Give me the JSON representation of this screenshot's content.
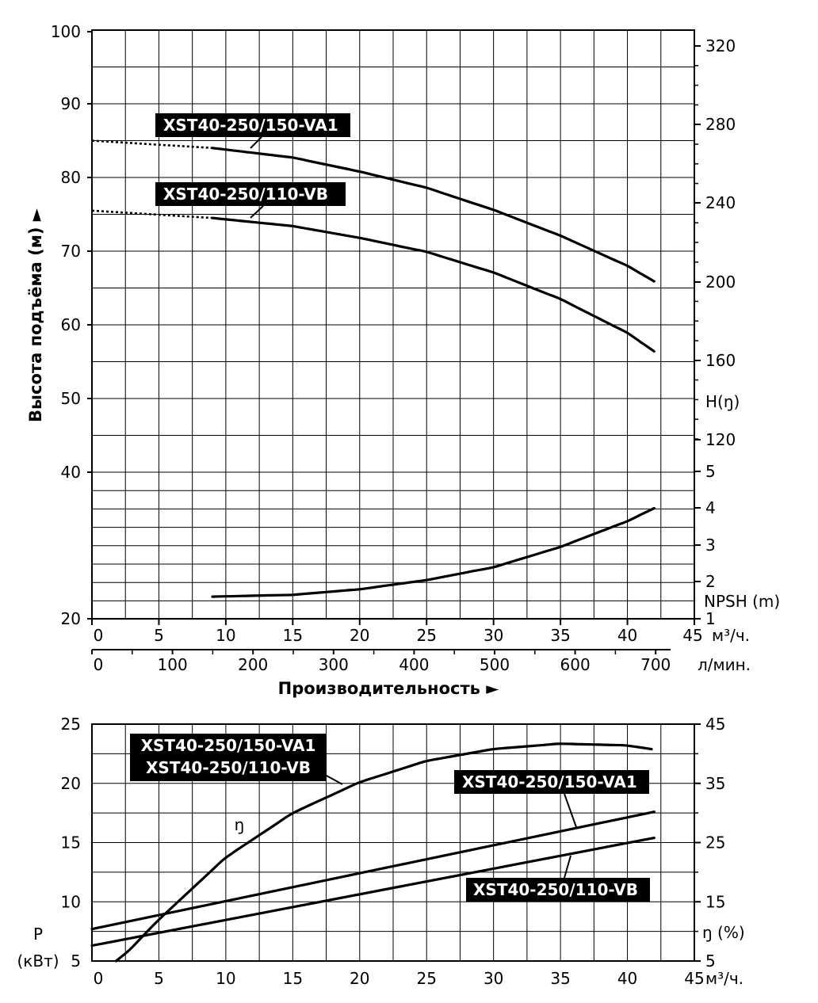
{
  "chart_data": [
    {
      "type": "line",
      "title": "",
      "xlabel": "Производительность ►",
      "ylabel": "Высота подъёма (м) ►",
      "xlim": [
        0,
        45
      ],
      "ylim": [
        20,
        100
      ],
      "x_unit": "м³/ч.",
      "x_secondary_unit": "л/мин.",
      "x_ticks": [
        "0",
        "5",
        "10",
        "15",
        "20",
        "25",
        "30",
        "35",
        "40",
        "45"
      ],
      "x_secondary_ticks": [
        "0",
        "100",
        "200",
        "300",
        "400",
        "500",
        "600",
        "700"
      ],
      "y_ticks": [
        "20",
        "40",
        "50",
        "60",
        "70",
        "80",
        "90",
        "100"
      ],
      "y_right_label": "H(ŋ)",
      "y_right_ticks": [
        "120",
        "160",
        "200",
        "240",
        "280",
        "320"
      ],
      "npsh_label": "NPSH (m)",
      "npsh_ticks": [
        "1",
        "2",
        "3",
        "4",
        "5"
      ],
      "grid": true,
      "series": [
        {
          "name": "XST40-250/150-VA1",
          "x": [
            0,
            9,
            15,
            20,
            25,
            30,
            35,
            40,
            42
          ],
          "y": [
            85.0,
            84.0,
            82.7,
            80.8,
            78.6,
            75.6,
            72.1,
            68.0,
            65.9
          ],
          "dotted_until_x": 9
        },
        {
          "name": "XST40-250/110-VB",
          "x": [
            0,
            9,
            15,
            20,
            25,
            30,
            35,
            40,
            42
          ],
          "y": [
            75.5,
            74.5,
            73.4,
            71.8,
            69.9,
            67.1,
            63.5,
            58.9,
            56.4
          ],
          "dotted_until_x": 9
        },
        {
          "name": "NPSH (m)",
          "x": [
            9,
            15,
            20,
            25,
            30,
            35,
            40,
            42
          ],
          "y": [
            1.6,
            1.65,
            1.8,
            2.05,
            2.4,
            2.95,
            3.65,
            4.0
          ]
        }
      ]
    },
    {
      "type": "line",
      "title": "",
      "xlabel": "",
      "ylabel": "P (кВт)",
      "xlim": [
        0,
        45
      ],
      "ylim": [
        5,
        25
      ],
      "x_unit": "м³/ч.",
      "x_ticks": [
        "0",
        "5",
        "10",
        "15",
        "20",
        "25",
        "30",
        "35",
        "40",
        "45"
      ],
      "y_ticks": [
        "5",
        "10",
        "15",
        "20",
        "25"
      ],
      "y_right_label": "ŋ (%)",
      "y_right_lim": [
        5,
        45
      ],
      "y_right_ticks": [
        "5",
        "15",
        "25",
        "35",
        "45"
      ],
      "eta_marker": "ŋ",
      "grid": true,
      "series": [
        {
          "name": "XST40-250/150-VA1",
          "axis": "left",
          "x": [
            0,
            42
          ],
          "y": [
            7.7,
            17.6
          ]
        },
        {
          "name": "XST40-250/110-VB",
          "axis": "left",
          "x": [
            0,
            42
          ],
          "y": [
            6.3,
            15.4
          ]
        },
        {
          "name": "ŋ",
          "axis": "right",
          "x": [
            2,
            5,
            10,
            15,
            20,
            25,
            30,
            35,
            40,
            42
          ],
          "y": [
            5,
            12,
            22.5,
            30,
            35.2,
            38.8,
            40.8,
            41.7,
            41.4,
            40.7
          ]
        }
      ]
    }
  ],
  "labels": {
    "top_va1": "XST40-250/150-VA1",
    "top_vb": "XST40-250/110-VB",
    "bottom_pair_1": "XST40-250/150-VA1",
    "bottom_pair_2": "XST40-250/110-VB",
    "bottom_va1": "XST40-250/150-VA1",
    "bottom_vb": "XST40-250/110-VB"
  }
}
